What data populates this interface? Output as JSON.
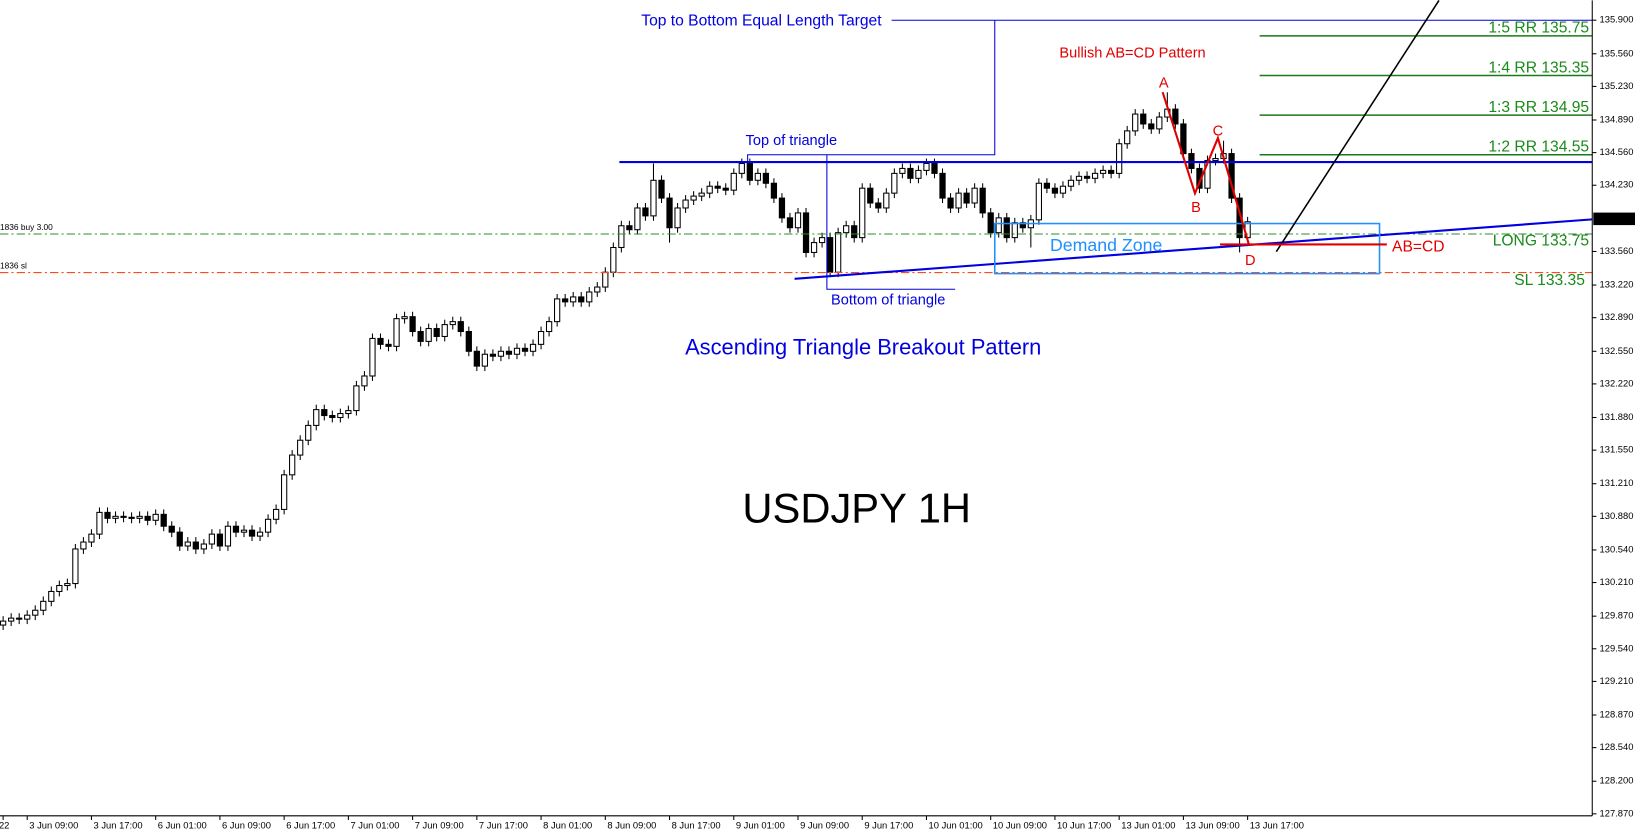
{
  "chart_data": {
    "type": "candlestick",
    "symbol_title": "USDJPY 1H",
    "up_color": "#ffffff",
    "down_color": "#000000",
    "wick_color": "#000000",
    "ylim": [
      127.85,
      136.1
    ],
    "yticks": [
      {
        "value": 135.9,
        "label": "135.900"
      },
      {
        "value": 135.56,
        "label": "135.560"
      },
      {
        "value": 135.23,
        "label": "135.230"
      },
      {
        "value": 134.89,
        "label": "134.890"
      },
      {
        "value": 134.56,
        "label": "134.560"
      },
      {
        "value": 134.23,
        "label": "134.230"
      },
      {
        "value": 133.56,
        "label": "133.560"
      },
      {
        "value": 133.22,
        "label": "133.220"
      },
      {
        "value": 132.89,
        "label": "132.890"
      },
      {
        "value": 132.55,
        "label": "132.550"
      },
      {
        "value": 132.22,
        "label": "132.220"
      },
      {
        "value": 131.88,
        "label": "131.880"
      },
      {
        "value": 131.55,
        "label": "131.550"
      },
      {
        "value": 131.21,
        "label": "131.210"
      },
      {
        "value": 130.88,
        "label": "130.880"
      },
      {
        "value": 130.54,
        "label": "130.540"
      },
      {
        "value": 130.21,
        "label": "130.210"
      },
      {
        "value": 129.87,
        "label": "129.870"
      },
      {
        "value": 129.54,
        "label": "129.540"
      },
      {
        "value": 129.21,
        "label": "129.210"
      },
      {
        "value": 128.87,
        "label": "128.870"
      },
      {
        "value": 128.54,
        "label": "128.540"
      },
      {
        "value": 128.2,
        "label": "128.200"
      },
      {
        "value": 127.87,
        "label": "127.870"
      }
    ],
    "current_price": {
      "value": 133.89,
      "label": "133.890"
    },
    "categories": [
      "22",
      null,
      null,
      "3 Jun 09:00",
      null,
      null,
      null,
      null,
      null,
      null,
      null,
      "3 Jun 17:00",
      null,
      null,
      null,
      null,
      null,
      null,
      null,
      "6 Jun 01:00",
      null,
      null,
      null,
      null,
      null,
      null,
      null,
      "6 Jun 09:00",
      null,
      null,
      null,
      null,
      null,
      null,
      null,
      "6 Jun 17:00",
      null,
      null,
      null,
      null,
      null,
      null,
      null,
      "7 Jun 01:00",
      null,
      null,
      null,
      null,
      null,
      null,
      null,
      "7 Jun 09:00",
      null,
      null,
      null,
      null,
      null,
      null,
      null,
      "7 Jun 17:00",
      null,
      null,
      null,
      null,
      null,
      null,
      null,
      "8 Jun 01:00",
      null,
      null,
      null,
      null,
      null,
      null,
      null,
      "8 Jun 09:00",
      null,
      null,
      null,
      null,
      null,
      null,
      null,
      "8 Jun 17:00",
      null,
      null,
      null,
      null,
      null,
      null,
      null,
      "9 Jun 01:00",
      null,
      null,
      null,
      null,
      null,
      null,
      null,
      "9 Jun 09:00",
      null,
      null,
      null,
      null,
      null,
      null,
      null,
      "9 Jun 17:00",
      null,
      null,
      null,
      null,
      null,
      null,
      null,
      "10 Jun 01:00",
      null,
      null,
      null,
      null,
      null,
      null,
      null,
      "10 Jun 09:00",
      null,
      null,
      null,
      null,
      null,
      null,
      null,
      "10 Jun 17:00",
      null,
      null,
      null,
      null,
      null,
      null,
      null,
      "13 Jun 01:00",
      null,
      null,
      null,
      null,
      null,
      null,
      null,
      "13 Jun 09:00",
      null,
      null,
      null,
      null,
      null,
      null,
      null,
      "13 Jun 17:00"
    ],
    "open": [
      129.78,
      129.82,
      129.85,
      129.84,
      129.88,
      129.93,
      130.02,
      130.12,
      130.18,
      130.2,
      130.55,
      130.62,
      130.7,
      130.92,
      130.86,
      130.88,
      130.87,
      130.86,
      130.88,
      130.84,
      130.9,
      130.78,
      130.72,
      130.58,
      130.62,
      130.55,
      130.6,
      130.7,
      130.58,
      130.78,
      130.72,
      130.74,
      130.68,
      130.72,
      130.85,
      130.95,
      131.3,
      131.5,
      131.65,
      131.8,
      131.96,
      131.9,
      131.88,
      131.92,
      131.95,
      132.2,
      132.3,
      132.68,
      132.62,
      132.6,
      132.88,
      132.9,
      132.75,
      132.65,
      132.78,
      132.7,
      132.82,
      132.85,
      132.75,
      132.55,
      132.4,
      132.52,
      132.5,
      132.55,
      132.52,
      132.58,
      132.55,
      132.62,
      132.75,
      132.85,
      133.08,
      133.05,
      133.1,
      133.05,
      133.15,
      133.2,
      133.35,
      133.6,
      133.82,
      133.78,
      134.0,
      133.92,
      134.28,
      134.1,
      133.8,
      134.0,
      134.08,
      134.12,
      134.15,
      134.22,
      134.2,
      134.18,
      134.35,
      134.45,
      134.28,
      134.35,
      134.25,
      134.1,
      133.9,
      133.8,
      133.95,
      133.55,
      133.65,
      133.7,
      133.35,
      133.75,
      133.82,
      133.7,
      134.2,
      134.05,
      134.0,
      134.15,
      134.35,
      134.4,
      134.3,
      134.38,
      134.45,
      134.35,
      134.1,
      134.0,
      134.15,
      134.05,
      134.2,
      133.95,
      133.75,
      133.9,
      133.7,
      133.85,
      133.8,
      133.88,
      134.25,
      134.2,
      134.15,
      134.22,
      134.28,
      134.32,
      134.3,
      134.35,
      134.38,
      134.35,
      134.65,
      134.78,
      134.95,
      134.85,
      134.8,
      134.92,
      135.0,
      134.85,
      134.55,
      134.4,
      134.2,
      134.48,
      134.5,
      134.55,
      134.1,
      133.7
    ],
    "high": [
      129.87,
      129.9,
      129.9,
      129.93,
      129.98,
      130.07,
      130.17,
      130.23,
      130.25,
      130.6,
      130.67,
      130.75,
      130.97,
      130.97,
      130.93,
      130.93,
      130.92,
      130.93,
      130.93,
      130.95,
      130.95,
      130.83,
      130.77,
      130.67,
      130.67,
      130.65,
      130.75,
      130.75,
      130.83,
      130.83,
      130.79,
      130.79,
      130.77,
      130.9,
      131.0,
      131.35,
      131.55,
      131.7,
      131.85,
      132.01,
      132.01,
      131.95,
      131.97,
      132.0,
      132.25,
      132.35,
      132.73,
      132.73,
      132.67,
      132.93,
      132.95,
      132.95,
      132.8,
      132.83,
      132.83,
      132.87,
      132.9,
      132.9,
      132.8,
      132.6,
      132.57,
      132.57,
      132.6,
      132.6,
      132.63,
      132.63,
      132.67,
      132.8,
      132.9,
      133.13,
      133.13,
      133.15,
      133.15,
      133.2,
      133.25,
      133.4,
      133.65,
      133.87,
      133.87,
      134.05,
      134.05,
      134.45,
      134.33,
      134.15,
      134.05,
      134.13,
      134.17,
      134.2,
      134.27,
      134.27,
      134.25,
      134.4,
      134.5,
      134.5,
      134.4,
      134.4,
      134.3,
      134.15,
      133.95,
      134.0,
      134.0,
      133.7,
      133.75,
      133.75,
      133.8,
      133.87,
      133.87,
      134.25,
      134.25,
      134.1,
      134.2,
      134.4,
      134.45,
      134.45,
      134.43,
      134.5,
      134.5,
      134.4,
      134.15,
      134.2,
      134.2,
      134.25,
      134.25,
      134.0,
      133.95,
      133.95,
      133.9,
      133.9,
      133.93,
      134.3,
      134.3,
      134.25,
      134.27,
      134.33,
      134.37,
      134.37,
      134.4,
      134.43,
      134.43,
      134.7,
      134.83,
      135.0,
      135.0,
      134.9,
      134.97,
      135.17,
      135.05,
      134.9,
      134.6,
      134.45,
      134.53,
      134.55,
      134.68,
      134.6,
      134.15,
      133.91
    ],
    "low": [
      129.73,
      129.77,
      129.79,
      129.79,
      129.83,
      129.88,
      129.97,
      130.07,
      130.13,
      130.15,
      130.5,
      130.57,
      130.65,
      130.81,
      130.81,
      130.82,
      130.81,
      130.81,
      130.79,
      130.79,
      130.73,
      130.67,
      130.53,
      130.53,
      130.5,
      130.5,
      130.55,
      130.53,
      130.53,
      130.67,
      130.67,
      130.63,
      130.63,
      130.67,
      130.8,
      130.9,
      131.25,
      131.45,
      131.6,
      131.75,
      131.85,
      131.83,
      131.83,
      131.87,
      131.9,
      132.15,
      132.25,
      132.57,
      132.55,
      132.55,
      132.83,
      132.7,
      132.6,
      132.6,
      132.65,
      132.65,
      132.77,
      132.7,
      132.5,
      132.35,
      132.35,
      132.45,
      132.45,
      132.47,
      132.47,
      132.5,
      132.5,
      132.57,
      132.7,
      132.8,
      133.0,
      133.0,
      133.0,
      133.0,
      133.1,
      133.15,
      133.3,
      133.55,
      133.73,
      133.73,
      133.87,
      133.87,
      134.05,
      133.65,
      133.75,
      133.95,
      134.03,
      134.07,
      134.1,
      134.15,
      134.13,
      134.13,
      134.3,
      134.23,
      134.23,
      134.2,
      134.05,
      133.85,
      133.75,
      133.75,
      133.5,
      133.5,
      133.6,
      133.3,
      133.3,
      133.7,
      133.65,
      133.65,
      134.0,
      133.95,
      133.95,
      134.1,
      134.3,
      134.25,
      134.25,
      134.33,
      134.3,
      134.05,
      133.95,
      133.95,
      134.0,
      134.0,
      133.9,
      133.7,
      133.7,
      133.65,
      133.65,
      133.75,
      133.6,
      133.83,
      134.15,
      134.1,
      134.1,
      134.17,
      134.23,
      134.25,
      134.25,
      134.3,
      134.3,
      134.3,
      134.6,
      134.73,
      134.8,
      134.75,
      134.75,
      134.87,
      134.8,
      134.5,
      134.35,
      134.15,
      134.15,
      134.43,
      134.45,
      134.05,
      133.55,
      133.65
    ],
    "close": [
      129.82,
      129.85,
      129.84,
      129.88,
      129.93,
      130.02,
      130.12,
      130.18,
      130.2,
      130.55,
      130.62,
      130.7,
      130.92,
      130.86,
      130.88,
      130.87,
      130.86,
      130.88,
      130.84,
      130.9,
      130.78,
      130.72,
      130.58,
      130.62,
      130.55,
      130.6,
      130.7,
      130.58,
      130.78,
      130.72,
      130.74,
      130.68,
      130.72,
      130.85,
      130.95,
      131.3,
      131.5,
      131.65,
      131.8,
      131.96,
      131.9,
      131.88,
      131.92,
      131.95,
      132.2,
      132.3,
      132.68,
      132.62,
      132.6,
      132.88,
      132.9,
      132.75,
      132.65,
      132.78,
      132.7,
      132.82,
      132.85,
      132.75,
      132.55,
      132.4,
      132.52,
      132.5,
      132.55,
      132.52,
      132.58,
      132.55,
      132.62,
      132.75,
      132.85,
      133.08,
      133.05,
      133.1,
      133.05,
      133.15,
      133.2,
      133.35,
      133.6,
      133.82,
      133.78,
      134.0,
      133.92,
      134.28,
      134.1,
      133.8,
      134.0,
      134.08,
      134.12,
      134.15,
      134.22,
      134.2,
      134.18,
      134.35,
      134.45,
      134.28,
      134.35,
      134.25,
      134.1,
      133.9,
      133.8,
      133.95,
      133.55,
      133.65,
      133.7,
      133.35,
      133.75,
      133.82,
      133.7,
      134.2,
      134.05,
      134.0,
      134.15,
      134.35,
      134.4,
      134.3,
      134.38,
      134.45,
      134.35,
      134.1,
      134.0,
      134.15,
      134.05,
      134.2,
      133.95,
      133.75,
      133.9,
      133.7,
      133.85,
      133.8,
      133.88,
      134.25,
      134.2,
      134.15,
      134.22,
      134.28,
      134.32,
      134.3,
      134.35,
      134.38,
      134.35,
      134.65,
      134.78,
      134.95,
      134.85,
      134.8,
      134.92,
      135.0,
      134.85,
      134.55,
      134.4,
      134.2,
      134.48,
      134.5,
      134.55,
      134.1,
      133.7,
      133.86
    ],
    "annotations": {
      "target": "Top to Bottom Equal Length Target",
      "abcd_title": "Bullish AB=CD Pattern",
      "point_a": "A",
      "point_b": "B",
      "point_c": "C",
      "point_d": "D",
      "rr5": "1:5 RR 135.75",
      "rr4": "1:4 RR 135.35",
      "rr3": "1:3 RR 134.95",
      "rr2": "1:2 RR 134.55",
      "top_triangle": "Top of triangle",
      "bottom_triangle": "Bottom of triangle",
      "demand_zone": "Demand Zone",
      "abcd": "AB=CD",
      "long": "LONG 133.75",
      "sl": "SL 133.35",
      "pattern": "Ascending Triangle Breakout Pattern",
      "order_buy": "1836 buy 3.00",
      "order_sl": "1836 sl"
    }
  }
}
